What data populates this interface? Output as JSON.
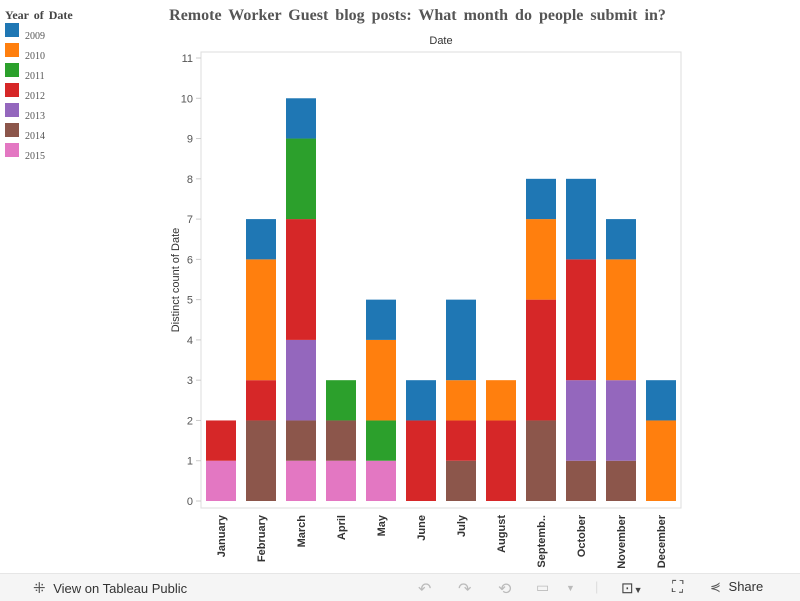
{
  "title": "Remote Worker Guest blog posts: What month do people submit in?",
  "legend": {
    "title": "Year of Date",
    "items": [
      {
        "label": "2009",
        "color": "#1f77b4"
      },
      {
        "label": "2010",
        "color": "#ff7f0e"
      },
      {
        "label": "2011",
        "color": "#2ca02c"
      },
      {
        "label": "2012",
        "color": "#d62728"
      },
      {
        "label": "2013",
        "color": "#9467bd"
      },
      {
        "label": "2014",
        "color": "#8c564b"
      },
      {
        "label": "2015",
        "color": "#e377c2"
      }
    ]
  },
  "chart_data": {
    "type": "bar",
    "stacked": true,
    "title": "Remote Worker Guest blog posts: What month do people submit in?",
    "xlabel": "Date",
    "ylabel": "Distinct count of Date",
    "ylim": [
      0,
      11
    ],
    "yticks": [
      0,
      1,
      2,
      3,
      4,
      5,
      6,
      7,
      8,
      9,
      10,
      11
    ],
    "categories": [
      "January",
      "February",
      "March",
      "April",
      "May",
      "June",
      "July",
      "August",
      "Septemb..",
      "October",
      "November",
      "December"
    ],
    "series": [
      {
        "name": "2015",
        "color": "#e377c2",
        "values": [
          1,
          0,
          1,
          1,
          1,
          0,
          0,
          0,
          0,
          0,
          0,
          0
        ]
      },
      {
        "name": "2014",
        "color": "#8c564b",
        "values": [
          0,
          2,
          1,
          1,
          0,
          0,
          1,
          0,
          2,
          1,
          1,
          0
        ]
      },
      {
        "name": "2013",
        "color": "#9467bd",
        "values": [
          0,
          0,
          2,
          0,
          0,
          0,
          0,
          0,
          0,
          2,
          2,
          0
        ]
      },
      {
        "name": "2012",
        "color": "#d62728",
        "values": [
          1,
          1,
          3,
          0,
          0,
          2,
          1,
          2,
          3,
          3,
          0,
          0
        ]
      },
      {
        "name": "2011",
        "color": "#2ca02c",
        "values": [
          0,
          0,
          2,
          1,
          1,
          0,
          0,
          0,
          0,
          0,
          0,
          0
        ]
      },
      {
        "name": "2010",
        "color": "#ff7f0e",
        "values": [
          0,
          3,
          0,
          0,
          2,
          0,
          1,
          1,
          2,
          0,
          3,
          2
        ]
      },
      {
        "name": "2009",
        "color": "#1f77b4",
        "values": [
          0,
          1,
          1,
          0,
          1,
          1,
          2,
          0,
          1,
          2,
          1,
          1
        ]
      }
    ],
    "legend": "top-left",
    "grid": false
  },
  "toolbar": {
    "view": "View on Tableau Public",
    "share": "Share"
  }
}
